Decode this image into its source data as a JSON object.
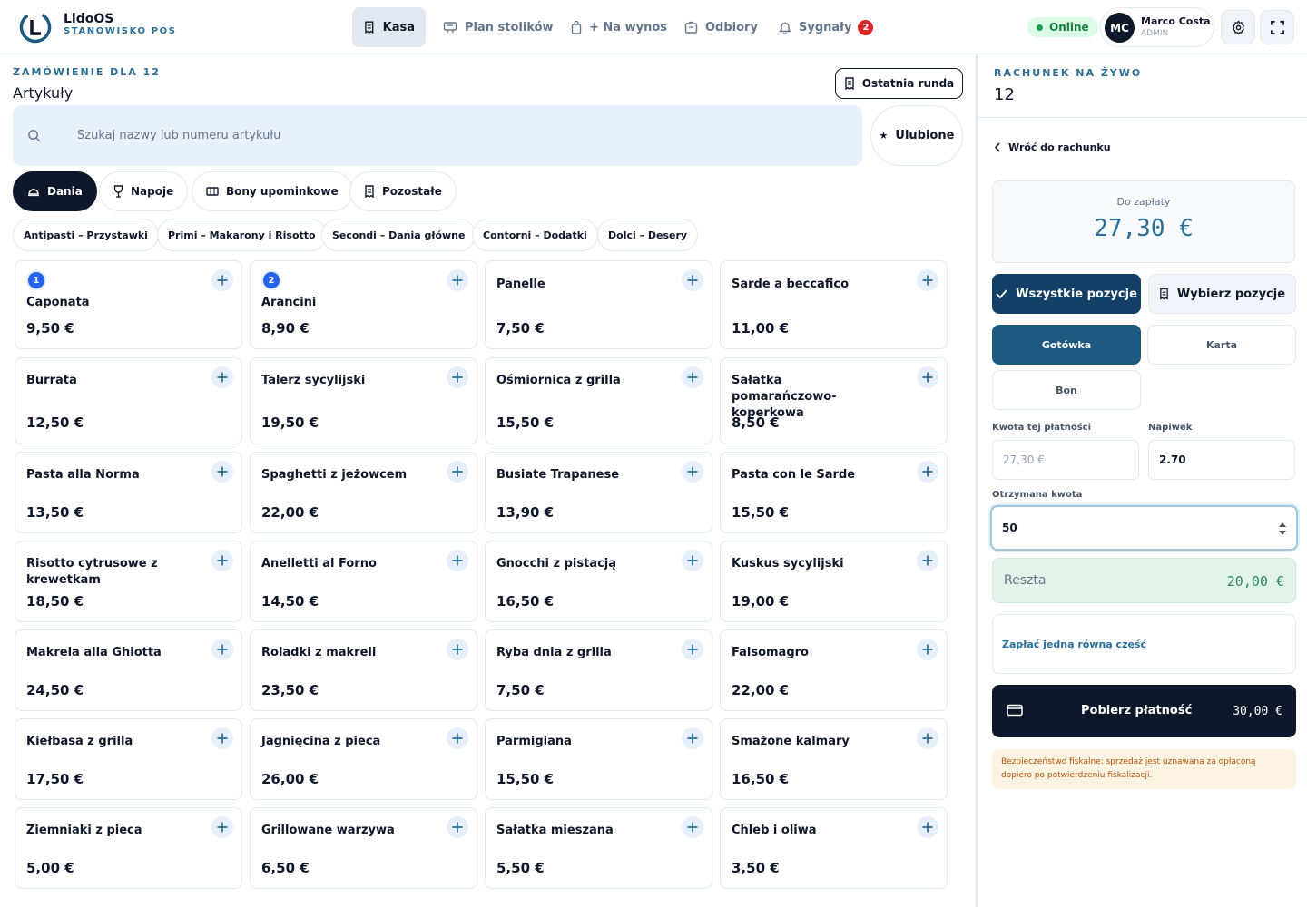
{
  "app": {
    "title": "LidoOS",
    "subtitle": "STANOWISKO POS"
  },
  "nav": {
    "items": [
      {
        "label": "Kasa",
        "icon": "receipt-icon"
      },
      {
        "label": "Plan stolików",
        "icon": "table-icon"
      },
      {
        "label": "+ Na wynos",
        "icon": "bag-icon"
      },
      {
        "label": "Odbiory",
        "icon": "box-icon"
      },
      {
        "label": "Sygnały",
        "icon": "bell-icon",
        "badge": "2"
      }
    ],
    "status": "Online",
    "user": {
      "initials": "MC",
      "name": "Marco Costa",
      "role": "ADMIN"
    }
  },
  "order": {
    "eyebrow": "ZAMÓWIENIE DLA 12",
    "title": "Artykuły",
    "last_round": "Ostatnia runda",
    "search_placeholder": "Szukaj nazwy lub numeru artykułu",
    "favorites": "Ulubione"
  },
  "categories": [
    "Dania",
    "Napoje",
    "Bony upominkowe",
    "Pozostałe"
  ],
  "subcategories": [
    "Antipasti – Przystawki",
    "Primi – Makarony i Risotto",
    "Secondi – Dania główne",
    "Contorni – Dodatki",
    "Dolci – Desery"
  ],
  "items": [
    {
      "name": "Caponata",
      "price": "9,50 €",
      "badge": "1"
    },
    {
      "name": "Arancini",
      "price": "8,90 €",
      "badge": "2"
    },
    {
      "name": "Panelle",
      "price": "7,50 €"
    },
    {
      "name": "Sarde a beccafico",
      "price": "11,00 €"
    },
    {
      "name": "Burrata",
      "price": "12,50 €"
    },
    {
      "name": "Talerz sycylijski",
      "price": "19,50 €"
    },
    {
      "name": "Ośmiornica z grilla",
      "price": "15,50 €"
    },
    {
      "name": "Sałatka pomarańczowo-koperkowa",
      "price": "8,50 €"
    },
    {
      "name": "Pasta alla Norma",
      "price": "13,50 €"
    },
    {
      "name": "Spaghetti z jeżowcem",
      "price": "22,00 €"
    },
    {
      "name": "Busiate Trapanese",
      "price": "13,90 €"
    },
    {
      "name": "Pasta con le Sarde",
      "price": "15,50 €"
    },
    {
      "name": "Risotto cytrusowe z krewetkam",
      "price": "18,50 €"
    },
    {
      "name": "Anelletti al Forno",
      "price": "14,50 €"
    },
    {
      "name": "Gnocchi z pistacją",
      "price": "16,50 €"
    },
    {
      "name": "Kuskus sycylijski",
      "price": "19,00 €"
    },
    {
      "name": "Makrela alla Ghiotta",
      "price": "24,50 €"
    },
    {
      "name": "Roladki z makreli",
      "price": "23,50 €"
    },
    {
      "name": "Ryba dnia z grilla",
      "price": "7,50 €"
    },
    {
      "name": "Falsomagro",
      "price": "22,00 €"
    },
    {
      "name": "Kiełbasa z grilla",
      "price": "17,50 €"
    },
    {
      "name": "Jagnięcina z pieca",
      "price": "26,00 €"
    },
    {
      "name": "Parmigiana",
      "price": "15,50 €"
    },
    {
      "name": "Smażone kalmary",
      "price": "16,50 €"
    },
    {
      "name": "Ziemniaki z pieca",
      "price": "5,00 €"
    },
    {
      "name": "Grillowane warzywa",
      "price": "6,50 €"
    },
    {
      "name": "Sałatka mieszana",
      "price": "5,50 €"
    },
    {
      "name": "Chleb i oliwa",
      "price": "3,50 €"
    }
  ],
  "bill": {
    "eyebrow": "RACHUNEK NA ŻYWO",
    "number": "12",
    "back": "Wróć do rachunku",
    "due_label": "Do zapłaty",
    "due_amount": "27,30 €",
    "all_items": "Wszystkie pozycje",
    "choose_items": "Wybierz pozycje",
    "methods": [
      "Gotówka",
      "Karta",
      "Bon"
    ],
    "amount_label": "Kwota tej płatności",
    "amount_placeholder": "27,30 €",
    "tip_label": "Napiwek",
    "tip_value": "2.70",
    "received_label": "Otrzymana kwota",
    "received_value": "50",
    "change_label": "Reszta",
    "change_value": "20,00 €",
    "equal_split": "Zapłać jedną równą część",
    "collect_label": "Pobierz płatność",
    "collect_amount": "30,00 €",
    "fiscal_note": "Bezpieczeństwo fiskalne: sprzedaż jest uznawana za opłaconą dopiero po potwierdzeniu fiskalizacji."
  },
  "colors": {
    "accent": "#2a6f97",
    "dark": "#0f172a",
    "active_method": "#1e5a80",
    "badge": "#2563eb",
    "alert": "#dc2626"
  }
}
